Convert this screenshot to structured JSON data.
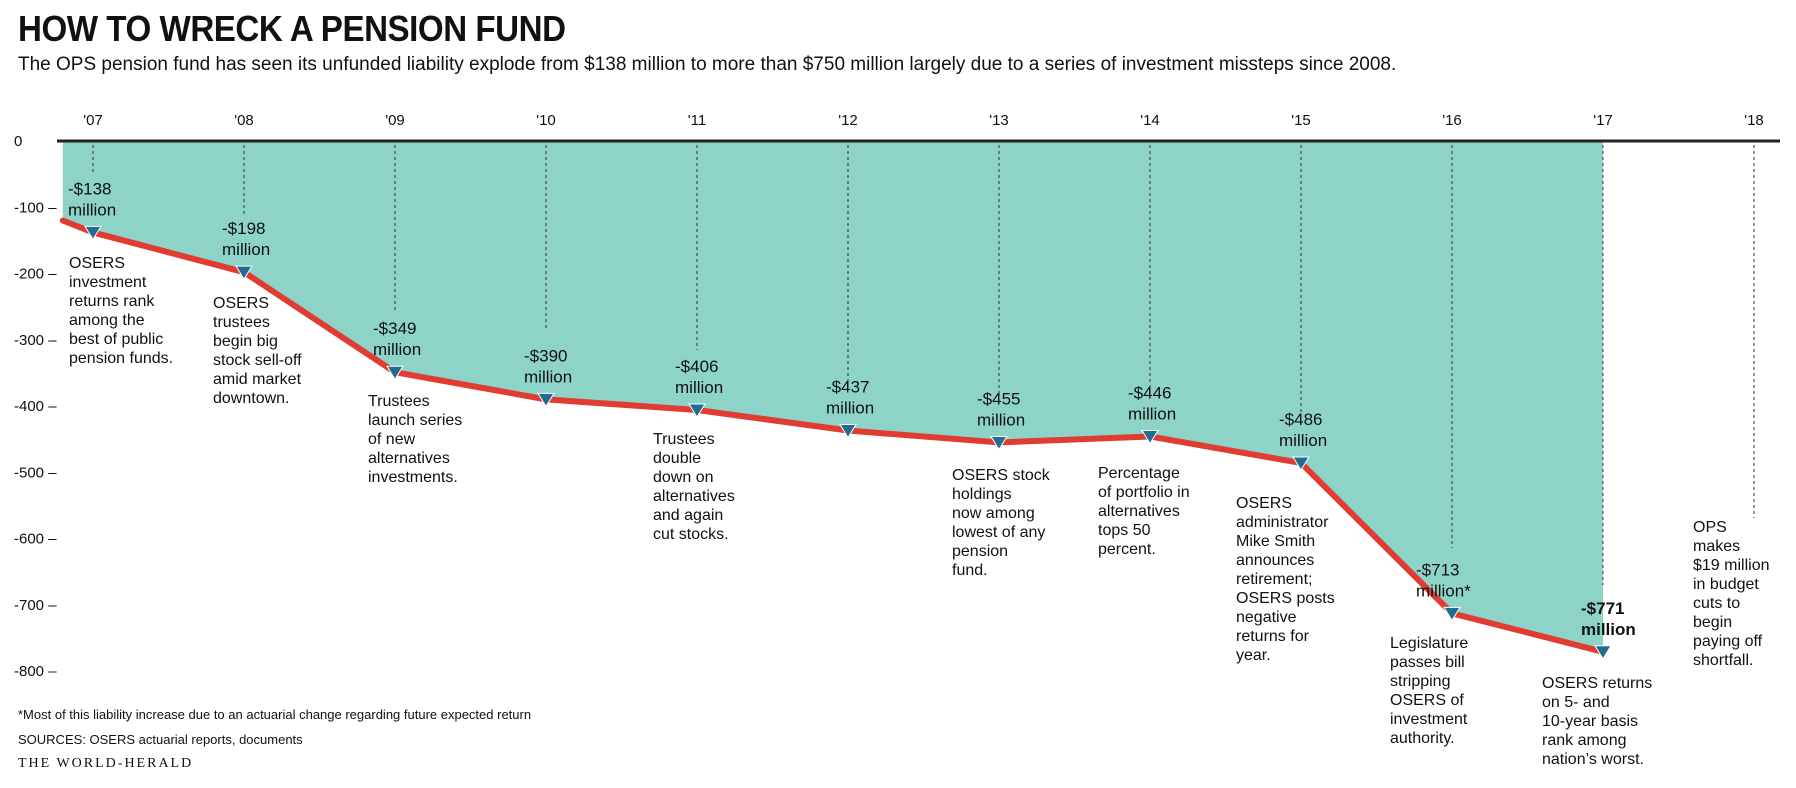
{
  "header": {
    "title": "HOW TO WRECK A PENSION FUND",
    "subtitle": "The OPS pension fund has seen its unfunded liability explode from $138 million to more than $750 million largely due to a series of investment missteps since 2008."
  },
  "footer": {
    "footnote": "*Most of this liability increase due to an actuarial change regarding future expected return",
    "sources": "SOURCES: OSERS actuarial reports, documents",
    "brand": "THE WORLD-HERALD"
  },
  "colors": {
    "area": "#8ed3c8",
    "line": "#e03c31",
    "marker": "#1f6d93",
    "axis": "#222222"
  },
  "chart_data": {
    "type": "area",
    "title": "",
    "xlabel": "",
    "ylabel": "",
    "x_ticks": [
      "'07",
      "'08",
      "'09",
      "'10",
      "'11",
      "'12",
      "'13",
      "'14",
      "'15",
      "'16",
      "'17",
      "'18"
    ],
    "y_ticks": [
      0,
      -100,
      -200,
      -300,
      -400,
      -500,
      -600,
      -700,
      -800
    ],
    "y_tick_labels": [
      "0",
      "-100 –",
      "-200 –",
      "-300 –",
      "-400 –",
      "-500 –",
      "-600 –",
      "-700 –",
      "-800 –"
    ],
    "xlim": [
      2006.75,
      2018.4
    ],
    "ylim": [
      -800,
      0
    ],
    "series": [
      {
        "values": [
          {
            "x": 2006.8,
            "y": -120
          },
          {
            "x": 2007,
            "y": -138,
            "label": [
              "-$138",
              "million"
            ]
          },
          {
            "x": 2008,
            "y": -198,
            "label": [
              "-$198",
              "million"
            ]
          },
          {
            "x": 2009,
            "y": -349,
            "label": [
              "-$349",
              "million"
            ]
          },
          {
            "x": 2010,
            "y": -390,
            "label": [
              "-$390",
              "million"
            ]
          },
          {
            "x": 2011,
            "y": -406,
            "label": [
              "-$406",
              "million"
            ]
          },
          {
            "x": 2012,
            "y": -437,
            "label": [
              "-$437",
              "million"
            ]
          },
          {
            "x": 2013,
            "y": -455,
            "label": [
              "-$455",
              "million"
            ]
          },
          {
            "x": 2014,
            "y": -446,
            "label": [
              "-$446",
              "million"
            ]
          },
          {
            "x": 2015,
            "y": -486,
            "label": [
              "-$486",
              "million"
            ]
          },
          {
            "x": 2016,
            "y": -713,
            "label": [
              "-$713",
              "million*"
            ]
          },
          {
            "x": 2017,
            "y": -771,
            "label": [
              "-$771",
              "million"
            ],
            "bold": true
          }
        ]
      }
    ],
    "annotations": [
      {
        "x": 2007,
        "lines": [
          "OSERS",
          "investment",
          "returns rank",
          "among the",
          "best of public",
          "pension funds."
        ]
      },
      {
        "x": 2008,
        "lines": [
          "OSERS",
          "trustees",
          "begin big",
          "stock sell-off",
          "amid market",
          "downtown."
        ]
      },
      {
        "x": 2009,
        "lines": [
          "Trustees",
          "launch series",
          "of new",
          "alternatives",
          "investments."
        ]
      },
      {
        "x": 2011,
        "lines": [
          "Trustees",
          "double",
          "down on",
          "alternatives",
          "and again",
          "cut stocks."
        ]
      },
      {
        "x": 2013,
        "lines": [
          "OSERS stock",
          "holdings",
          "now among",
          "lowest of any",
          "pension",
          "fund."
        ]
      },
      {
        "x": 2014,
        "lines": [
          "Percentage",
          "of portfolio in",
          "alternatives",
          "tops 50",
          "percent."
        ]
      },
      {
        "x": 2015,
        "lines": [
          "OSERS",
          "administrator",
          "Mike Smith",
          "announces",
          "retirement;",
          "OSERS posts",
          "negative",
          "returns for",
          "year."
        ]
      },
      {
        "x": 2016,
        "lines": [
          "Legislature",
          "passes bill",
          "stripping",
          "OSERS of",
          "investment",
          "authority."
        ]
      },
      {
        "x": 2017,
        "lines": [
          "OSERS returns",
          "on 5- and",
          "10-year basis",
          "rank among",
          "nation’s worst."
        ]
      },
      {
        "x": 2018,
        "lines": [
          "OPS",
          "makes",
          "$19 million",
          "in budget",
          "cuts to",
          "begin",
          "paying off",
          "shortfall."
        ]
      }
    ]
  }
}
